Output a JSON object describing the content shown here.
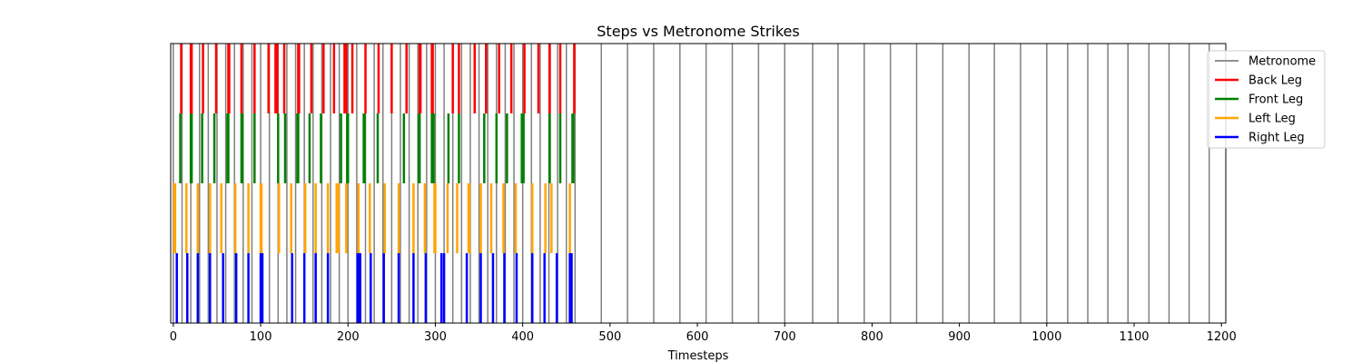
{
  "chart_data": {
    "type": "event-raster",
    "title": "Steps vs Metronome Strikes",
    "xlabel": "Timesteps",
    "ylabel": "",
    "xlim": [
      -3,
      1205
    ],
    "x_ticks": [
      0,
      100,
      200,
      300,
      400,
      500,
      600,
      700,
      800,
      900,
      1000,
      1100,
      1200
    ],
    "grid": false,
    "legend_position": "top-right",
    "series": [
      {
        "name": "Metronome",
        "color": "#808080",
        "lane": "full",
        "x": [
          0,
          10,
          20,
          30,
          40,
          50,
          60,
          70,
          80,
          90,
          100,
          110,
          120,
          130,
          140,
          150,
          160,
          170,
          180,
          190,
          200,
          210,
          220,
          230,
          240,
          250,
          260,
          270,
          280,
          290,
          300,
          310,
          320,
          330,
          340,
          350,
          360,
          370,
          380,
          390,
          400,
          410,
          420,
          430,
          440,
          450,
          460,
          490,
          520,
          550,
          580,
          610,
          640,
          670,
          700,
          732,
          761,
          791,
          821,
          851,
          881,
          911,
          940,
          970,
          1000,
          1024,
          1047,
          1070,
          1093,
          1117,
          1140,
          1163,
          1186
        ]
      },
      {
        "name": "Back Leg",
        "color": "#ff0000",
        "lane": 3,
        "x": [
          9,
          20,
          21,
          34,
          49,
          63,
          64,
          78,
          93,
          109,
          117,
          119,
          127,
          143,
          144,
          158,
          172,
          184,
          196,
          198,
          205,
          220,
          235,
          250,
          267,
          282,
          283,
          296,
          297,
          320,
          327,
          345,
          358,
          373,
          387,
          402,
          418,
          431,
          443,
          459
        ]
      },
      {
        "name": "Front Leg",
        "color": "#008000",
        "lane": 2,
        "x": [
          8,
          20,
          21,
          33,
          47,
          62,
          63,
          78,
          79,
          93,
          120,
          128,
          142,
          143,
          156,
          169,
          192,
          199,
          200,
          218,
          219,
          234,
          264,
          281,
          282,
          296,
          297,
          298,
          315,
          327,
          356,
          370,
          382,
          399,
          400,
          401,
          431,
          443,
          457,
          458
        ]
      },
      {
        "name": "Left Leg",
        "color": "#ffa500",
        "lane": 1,
        "x": [
          1,
          2,
          15,
          28,
          42,
          55,
          71,
          86,
          100,
          101,
          121,
          135,
          151,
          163,
          177,
          187,
          188,
          189,
          198,
          212,
          225,
          242,
          258,
          275,
          288,
          299,
          300,
          314,
          325,
          338,
          339,
          352,
          364,
          378,
          392,
          411,
          426,
          433,
          454
        ]
      },
      {
        "name": "Right Leg",
        "color": "#0000ff",
        "lane": 0,
        "x": [
          4,
          16,
          28,
          42,
          57,
          72,
          86,
          100,
          101,
          102,
          136,
          150,
          163,
          177,
          211,
          212,
          213,
          214,
          226,
          241,
          258,
          275,
          289,
          307,
          310,
          336,
          352,
          366,
          379,
          393,
          411,
          425,
          439,
          454,
          455,
          456
        ]
      }
    ]
  }
}
